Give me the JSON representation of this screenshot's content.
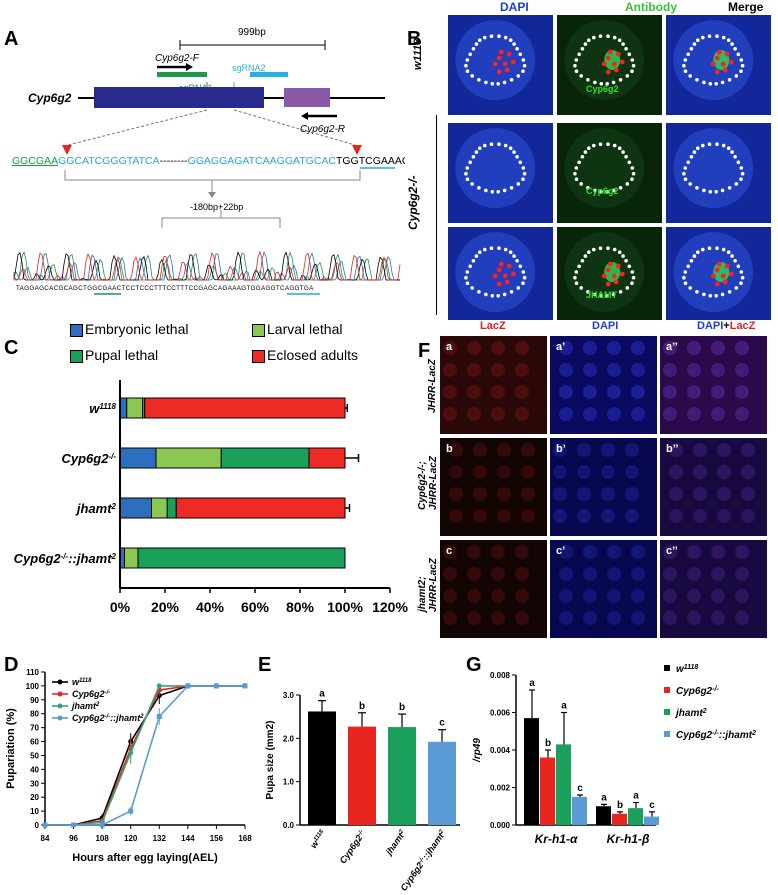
{
  "panel_labels": [
    "A",
    "B",
    "C",
    "D",
    "E",
    "F",
    "G"
  ],
  "colors": {
    "blue": "#2d6fbe",
    "green_light": "#8cc751",
    "green_dark": "#1aa05a",
    "red": "#ee2a24",
    "gene_bar": "#2a2a8e",
    "exon2": "#8a5aa8",
    "sgrna_green": "#1a9a4a",
    "sgrna_cyan": "#2ab0e0",
    "seq_green": "#1a9a4a",
    "seq_cyan": "#2aa5d8",
    "d_black": "#000000",
    "d_red": "#e8251f",
    "d_green": "#3aa07a",
    "d_lightblue": "#5b9bd5"
  },
  "panelA": {
    "gene": "Cyp6g2",
    "size_label": "999bp",
    "primer_f": "Cyp6g2-F",
    "primer_r": "Cyp6g2-R",
    "sgrna1": "sgRNA1",
    "sgrna2": "sgRNA2",
    "seq_left_green": "GGCGAA",
    "seq_left_cyan": "GGCATCGGGTATCA",
    "seq_dashes": "--------",
    "seq_right_cyan": "GGAGGAGATCAAGGATGCAC",
    "seq_right_black": "TGGT",
    "seq_right_end": "CGAAAG",
    "indel": "-180bp+22bp",
    "chromatogram_seq": "TAGGAGCACGCAGCTGGCGAACTCCTCCCTTTCCTTTCCGAGCAGAAAGTGGAGGTCAGGTGA"
  },
  "panelB": {
    "col_headers": [
      "DAPI",
      "Antibody",
      "Merge"
    ],
    "row_w1118": "w1118",
    "row_cyp": "Cyp6g2-/-",
    "label_cyp6g2_a": "Cyp6g2",
    "label_cyp6g2_b": "Cyp6g2",
    "label_jhamt": "JHAMT"
  },
  "panelC": {
    "legend": [
      "Embryonic lethal",
      "Larval lethal",
      "Pupal lethal",
      "Eclosed adults"
    ]
  },
  "panelF": {
    "col_lacz": "LacZ",
    "col_dapi": "DAPI",
    "col_merge_dapi": "DAPI",
    "col_merge_plus": "+",
    "col_merge_lacz": "LacZ",
    "row1": "JHRR-LacZ",
    "row2_a": "Cyp6g2-/-;",
    "row2_b": "JHRR-LacZ",
    "row3_a": "jhamt2;",
    "row3_b": "JHRR-LacZ",
    "tiles": [
      "a",
      "a’",
      "a’’",
      "b",
      "b’",
      "b’’",
      "c",
      "c’",
      "c’’"
    ]
  },
  "chart_data": [
    {
      "panel": "C",
      "type": "bar",
      "orientation": "horizontal-stacked",
      "categories": [
        "w1118",
        "Cyp6g2-/-",
        "jhamt2",
        "Cyp6g2-/-::jhamt2"
      ],
      "series": [
        {
          "name": "Embryonic lethal",
          "values": [
            3,
            16,
            14,
            2
          ],
          "errors": [
            0,
            0,
            0,
            0
          ]
        },
        {
          "name": "Larval lethal",
          "values": [
            7,
            29,
            7,
            6
          ],
          "errors": [
            3,
            8,
            3,
            4
          ]
        },
        {
          "name": "Pupal lethal",
          "values": [
            1,
            39,
            4,
            92
          ],
          "errors": [
            0,
            3,
            3,
            0
          ]
        },
        {
          "name": "Eclosed adults",
          "values": [
            89,
            16,
            75,
            0
          ],
          "errors": [
            1,
            6,
            2,
            0
          ]
        }
      ],
      "xticks": [
        "0%",
        "20%",
        "40%",
        "60%",
        "80%",
        "100%",
        "120%"
      ],
      "xlim": [
        0,
        120
      ]
    },
    {
      "panel": "D",
      "type": "line",
      "x": [
        84,
        96,
        108,
        120,
        132,
        144,
        156,
        168
      ],
      "xticks": [
        "84",
        "96",
        "108",
        "120",
        "132",
        "144",
        "156",
        "168"
      ],
      "yticks": [
        "0",
        "10",
        "20",
        "30",
        "40",
        "50",
        "60",
        "70",
        "80",
        "90",
        "100",
        "110"
      ],
      "xlabel": "Hours after egg laying(AEL)",
      "ylabel": "Pupariation (%)",
      "ylim": [
        0,
        110
      ],
      "series": [
        {
          "name": "w1118",
          "values": [
            0,
            0,
            5,
            60,
            93,
            100,
            100,
            100
          ],
          "errors": [
            0,
            0,
            3,
            6,
            6,
            0,
            0,
            0
          ]
        },
        {
          "name": "Cyp6g2-/-",
          "values": [
            0,
            0,
            3,
            55,
            97,
            100,
            100,
            100
          ],
          "errors": [
            0,
            0,
            2,
            7,
            4,
            0,
            0,
            0
          ]
        },
        {
          "name": "jhamt2",
          "values": [
            0,
            0,
            2,
            52,
            100,
            100,
            100,
            100
          ],
          "errors": [
            0,
            0,
            1,
            8,
            0,
            0,
            0,
            0
          ]
        },
        {
          "name": "Cyp6g2-/-::jhamt2",
          "values": [
            0,
            0,
            0,
            10,
            78,
            100,
            100,
            100
          ],
          "errors": [
            0,
            0,
            0,
            3,
            6,
            0,
            0,
            0
          ]
        }
      ]
    },
    {
      "panel": "E",
      "type": "bar",
      "categories": [
        "w1118",
        "Cyp6g2-/-",
        "jhamt2",
        "Cyp6g2-/-::jhamt2"
      ],
      "values": [
        2.62,
        2.27,
        2.26,
        1.92
      ],
      "errors": [
        0.25,
        0.32,
        0.3,
        0.28
      ],
      "letters": [
        "a",
        "b",
        "b",
        "c"
      ],
      "ylabel": "Pupa size (mm2)",
      "yticks": [
        "0.0",
        "1.0",
        "2.0",
        "3.0"
      ],
      "ylim": [
        0,
        3.0
      ]
    },
    {
      "panel": "G",
      "type": "bar",
      "categories": [
        "Kr-h1-α",
        "Kr-h1-β"
      ],
      "series": [
        {
          "name": "w1118",
          "values": [
            0.0057,
            0.001
          ],
          "errors": [
            0.0015,
            0.0001
          ],
          "letters": [
            "a",
            "a"
          ]
        },
        {
          "name": "Cyp6g2-/-",
          "values": [
            0.0036,
            0.0006
          ],
          "errors": [
            0.0004,
            0.0001
          ],
          "letters": [
            "b",
            "b"
          ]
        },
        {
          "name": "jhamt2",
          "values": [
            0.0043,
            0.0009
          ],
          "errors": [
            0.0017,
            0.0003
          ],
          "letters": [
            "a",
            "a"
          ]
        },
        {
          "name": "Cyp6g2-/-::jhamt2",
          "values": [
            0.0015,
            0.00045
          ],
          "errors": [
            0.0001,
            0.00025
          ],
          "letters": [
            "c",
            "c"
          ]
        }
      ],
      "ylabel": "/rp49",
      "yticks": [
        "0.000",
        "0.002",
        "0.004",
        "0.006",
        "0.008"
      ],
      "ylim": [
        0,
        0.008
      ]
    }
  ]
}
